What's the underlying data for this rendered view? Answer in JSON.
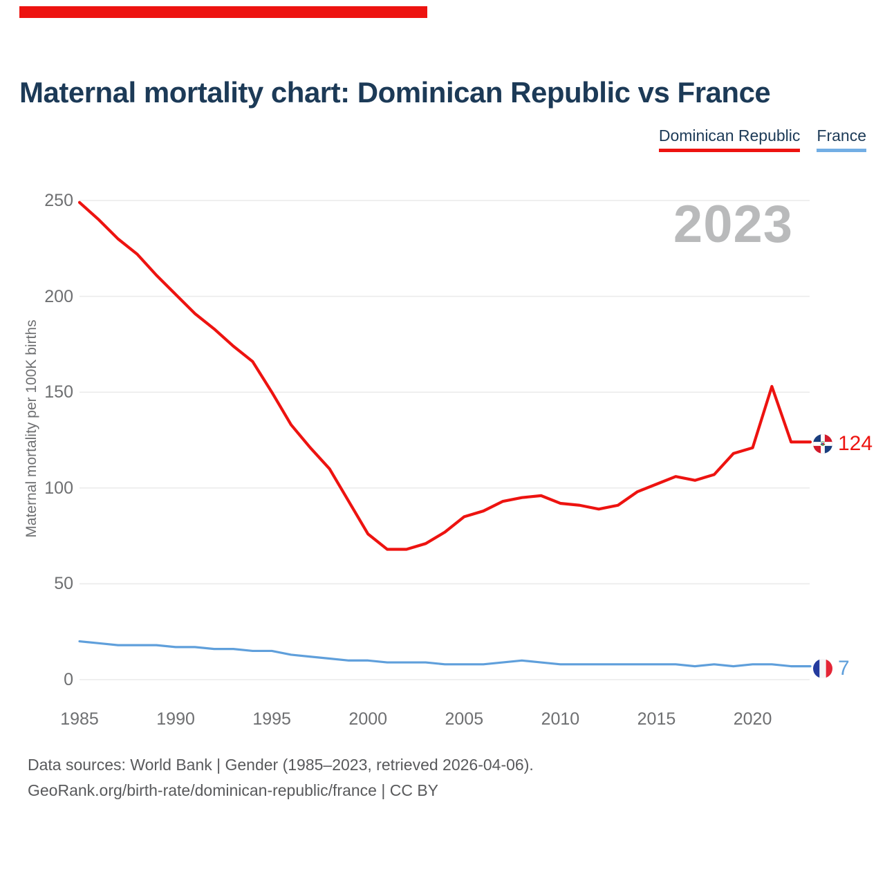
{
  "title": "Maternal mortality chart: Dominican Republic vs France",
  "watermark": "2023",
  "legend": [
    {
      "label": "Dominican Republic",
      "color": "#ed1310"
    },
    {
      "label": "France",
      "color": "#72aee4"
    }
  ],
  "y_axis": {
    "title": "Maternal mortality per 100K births",
    "ticks": [
      0,
      50,
      100,
      150,
      200,
      250
    ]
  },
  "x_axis": {
    "ticks": [
      1985,
      1990,
      1995,
      2000,
      2005,
      2010,
      2015,
      2020
    ]
  },
  "chart_data": {
    "type": "line",
    "title": "Maternal mortality chart: Dominican Republic vs France",
    "xlabel": "",
    "ylabel": "Maternal mortality per 100K births",
    "ylim": [
      0,
      250
    ],
    "xlim": [
      1985,
      2023
    ],
    "grid": "horizontal",
    "legend_position": "top-right",
    "x": [
      1985,
      1986,
      1987,
      1988,
      1989,
      1990,
      1991,
      1992,
      1993,
      1994,
      1995,
      1996,
      1997,
      1998,
      1999,
      2000,
      2001,
      2002,
      2003,
      2004,
      2005,
      2006,
      2007,
      2008,
      2009,
      2010,
      2011,
      2012,
      2013,
      2014,
      2015,
      2016,
      2017,
      2018,
      2019,
      2020,
      2021,
      2022,
      2023
    ],
    "series": [
      {
        "name": "Dominican Republic",
        "color": "#ed1310",
        "end_label": "124",
        "values": [
          249,
          240,
          230,
          222,
          211,
          201,
          191,
          183,
          174,
          166,
          150,
          133,
          121,
          110,
          93,
          76,
          68,
          68,
          71,
          77,
          85,
          88,
          93,
          95,
          96,
          92,
          91,
          89,
          91,
          98,
          102,
          106,
          104,
          107,
          118,
          121,
          153,
          124,
          124
        ]
      },
      {
        "name": "France",
        "color": "#5f9fdb",
        "end_label": "7",
        "values": [
          20,
          19,
          18,
          18,
          18,
          17,
          17,
          16,
          16,
          15,
          15,
          13,
          12,
          11,
          10,
          10,
          9,
          9,
          9,
          8,
          8,
          8,
          9,
          10,
          9,
          8,
          8,
          8,
          8,
          8,
          8,
          8,
          7,
          8,
          7,
          8,
          8,
          7,
          7
        ]
      }
    ]
  },
  "footer": {
    "line1": "Data sources: World Bank | Gender (1985–2023, retrieved 2026-04-06).",
    "line2": "GeoRank.org/birth-rate/dominican-republic/france | CC BY"
  }
}
